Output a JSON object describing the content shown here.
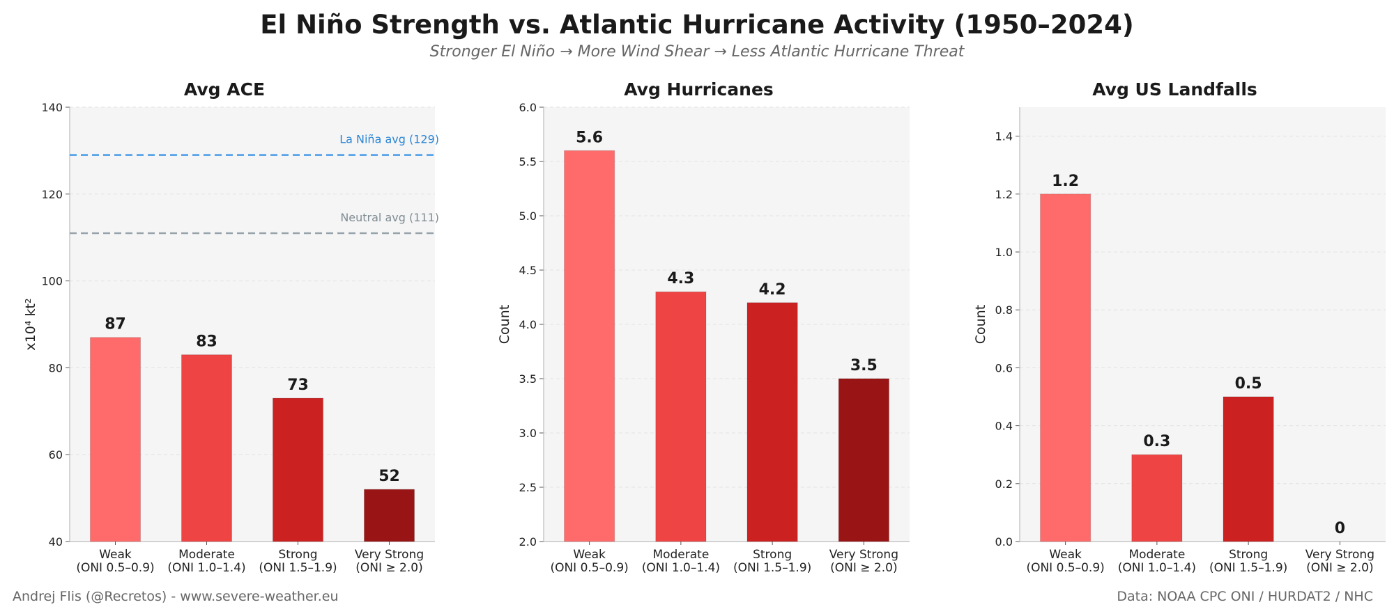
{
  "title": "El Niño Strength vs. Atlantic Hurricane Activity (1950–2024)",
  "subtitle": "Stronger El Niño → More Wind Shear → Less Atlantic Hurricane Threat",
  "credit": "Andrej Flis (@Recretos) - www.severe-weather.eu",
  "source": "Data: NOAA CPC ONI / HURDAT2 / NHC",
  "colors": [
    "#ff6b6b",
    "#ef4444",
    "#cc2121",
    "#991414"
  ],
  "chart_data": [
    {
      "type": "bar",
      "title": "Avg ACE",
      "ylabel": "x10⁴ kt²",
      "categories": [
        "Weak\n(ONI 0.5–0.9)",
        "Moderate\n(ONI 1.0–1.4)",
        "Strong\n(ONI 1.5–1.9)",
        "Very Strong\n(ONI ≥ 2.0)"
      ],
      "values": [
        87,
        83,
        73,
        52
      ],
      "value_labels": [
        "87",
        "83",
        "73",
        "52"
      ],
      "ylim": [
        40,
        140
      ],
      "yticks": [
        40,
        60,
        80,
        100,
        120,
        140
      ],
      "ytick_labels": [
        "40",
        "60",
        "80",
        "100",
        "120",
        "140"
      ],
      "reference_lines": [
        {
          "label": "La Niña avg (129)",
          "value": 129,
          "color": "#4a9be8",
          "text_color": "#2a85d4"
        },
        {
          "label": "Neutral avg (111)",
          "value": 111,
          "color": "#97a3ab",
          "text_color": "#7f8c93"
        }
      ],
      "grid": true
    },
    {
      "type": "bar",
      "title": "Avg Hurricanes",
      "ylabel": "Count",
      "categories": [
        "Weak\n(ONI 0.5–0.9)",
        "Moderate\n(ONI 1.0–1.4)",
        "Strong\n(ONI 1.5–1.9)",
        "Very Strong\n(ONI ≥ 2.0)"
      ],
      "values": [
        5.6,
        4.3,
        4.2,
        3.5
      ],
      "value_labels": [
        "5.6",
        "4.3",
        "4.2",
        "3.5"
      ],
      "ylim": [
        2.0,
        6.0
      ],
      "yticks": [
        2.0,
        2.5,
        3.0,
        3.5,
        4.0,
        4.5,
        5.0,
        5.5,
        6.0
      ],
      "ytick_labels": [
        "2.0",
        "2.5",
        "3.0",
        "3.5",
        "4.0",
        "4.5",
        "5.0",
        "5.5",
        "6.0"
      ],
      "reference_lines": [],
      "grid": true
    },
    {
      "type": "bar",
      "title": "Avg US Landfalls",
      "ylabel": "Count",
      "categories": [
        "Weak\n(ONI 0.5–0.9)",
        "Moderate\n(ONI 1.0–1.4)",
        "Strong\n(ONI 1.5–1.9)",
        "Very Strong\n(ONI ≥ 2.0)"
      ],
      "values": [
        1.2,
        0.3,
        0.5,
        0
      ],
      "value_labels": [
        "1.2",
        "0.3",
        "0.5",
        "0"
      ],
      "ylim": [
        0,
        1.5
      ],
      "yticks": [
        0.0,
        0.2,
        0.4,
        0.6,
        0.8,
        1.0,
        1.2,
        1.4
      ],
      "ytick_labels": [
        "0.0",
        "0.2",
        "0.4",
        "0.6",
        "0.8",
        "1.0",
        "1.2",
        "1.4"
      ],
      "reference_lines": [],
      "grid": true
    }
  ]
}
